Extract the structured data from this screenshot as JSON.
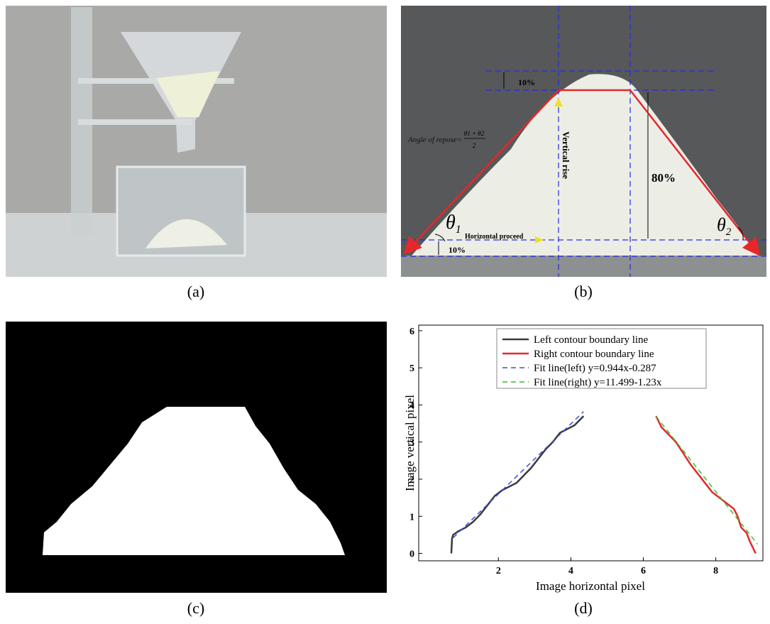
{
  "captions": [
    "(a)",
    "(b)",
    "(c)",
    "(d)"
  ],
  "panel_b": {
    "top_pct": "10%",
    "bottom_pct": "10%",
    "middle_pct": "80%",
    "vertical": "Vertical rise",
    "horizontal": "Horizontal proceed",
    "formula": {
      "text": "Angle of repose=",
      "numerator": "θ1 + θ2",
      "denominator": "2"
    },
    "theta1": {
      "symbol": "θ",
      "sub": "1"
    },
    "theta2": {
      "symbol": "θ",
      "sub": "2"
    }
  },
  "chart_data": {
    "type": "line",
    "xlabel": "Image horizontal pixel",
    "ylabel": "Image vertical pixel",
    "xlim": [
      -0.2,
      9.3
    ],
    "ylim": [
      -0.2,
      6.15
    ],
    "xticks": [
      2,
      4,
      6,
      8
    ],
    "yticks": [
      0,
      1,
      2,
      3,
      4,
      5,
      6
    ],
    "series": [
      {
        "name": "Left contour boundary line",
        "color": "#3a3a3a",
        "dash": false,
        "x": [
          0.7,
          0.72,
          0.75,
          0.9,
          1.1,
          1.3,
          1.5,
          1.7,
          1.9,
          2.1,
          2.3,
          2.5,
          2.7,
          2.9,
          3.1,
          3.3,
          3.5,
          3.7,
          3.9,
          4.1,
          4.35
        ],
        "values": [
          0.0,
          0.4,
          0.5,
          0.6,
          0.7,
          0.85,
          1.05,
          1.3,
          1.55,
          1.7,
          1.8,
          1.9,
          2.1,
          2.3,
          2.55,
          2.8,
          3.0,
          3.25,
          3.35,
          3.45,
          3.7
        ]
      },
      {
        "name": "Right contour boundary line",
        "color": "#e8262a",
        "dash": false,
        "x": [
          6.35,
          6.5,
          6.7,
          6.9,
          7.1,
          7.3,
          7.5,
          7.7,
          7.9,
          8.1,
          8.3,
          8.5,
          8.6,
          8.7,
          8.85,
          8.95,
          9.1
        ],
        "values": [
          3.7,
          3.4,
          3.2,
          3.0,
          2.7,
          2.4,
          2.15,
          1.9,
          1.65,
          1.5,
          1.35,
          1.2,
          1.0,
          0.7,
          0.55,
          0.3,
          0.0
        ]
      },
      {
        "name": "Fit line(left)  y=0.944x-0.287",
        "color": "#3b4fe0",
        "dash": true,
        "x": [
          0.75,
          4.35
        ],
        "values": [
          0.42,
          3.82
        ]
      },
      {
        "name": "Fit line(right) y=11.499-1.23x",
        "color": "#2ec42e",
        "dash": true,
        "x": [
          6.35,
          9.15
        ],
        "values": [
          3.69,
          0.25
        ]
      }
    ]
  }
}
